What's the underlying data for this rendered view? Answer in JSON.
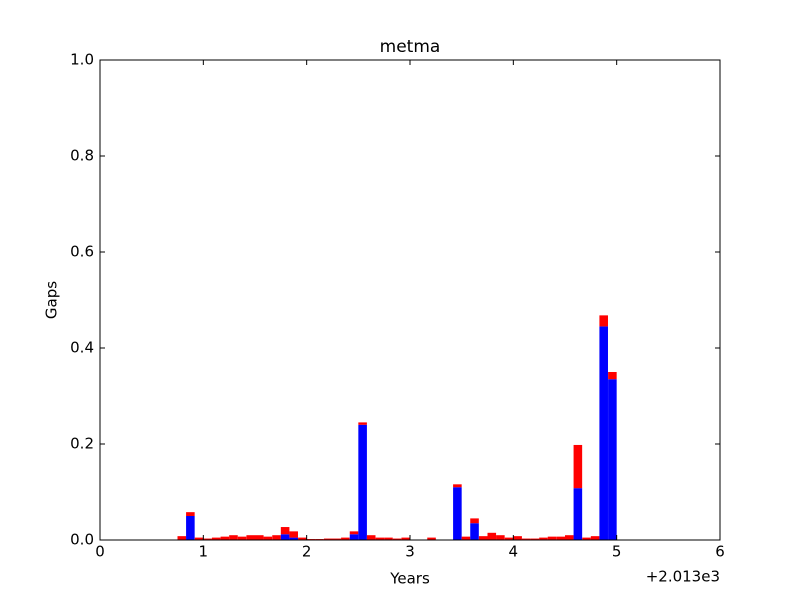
{
  "chart_data": {
    "type": "stacked_bar",
    "title": "metma",
    "xlabel": "Years",
    "ylabel": "Gaps",
    "x_offset_label": "+2.013e3",
    "x": [
      0.75,
      0.833,
      0.917,
      1.0,
      1.083,
      1.167,
      1.25,
      1.333,
      1.417,
      1.5,
      1.583,
      1.667,
      1.75,
      1.833,
      1.917,
      2.0,
      2.083,
      2.167,
      2.25,
      2.333,
      2.417,
      2.5,
      2.583,
      2.667,
      2.75,
      2.833,
      2.917,
      3.0,
      3.083,
      3.167,
      3.25,
      3.333,
      3.417,
      3.5,
      3.583,
      3.667,
      3.75,
      3.833,
      3.917,
      4.0,
      4.083,
      4.167,
      4.25,
      4.333,
      4.417,
      4.5,
      4.583,
      4.667,
      4.75,
      4.833,
      4.917
    ],
    "series": [
      {
        "color": "#0000ff",
        "values": [
          0,
          0.05,
          0,
          0,
          0,
          0,
          0,
          0,
          0,
          0,
          0,
          0,
          0.012,
          0.005,
          0,
          0,
          0,
          0,
          0,
          0,
          0.012,
          0.24,
          0,
          0,
          0,
          0,
          0,
          0,
          0,
          0,
          0,
          0,
          0.11,
          0,
          0.035,
          0,
          0,
          0,
          0,
          0,
          0,
          0,
          0,
          0,
          0,
          0,
          0.108,
          0,
          0,
          0.445,
          0.335
        ]
      },
      {
        "color": "#ff0000",
        "values": [
          0.008,
          0.008,
          0.005,
          0.003,
          0.005,
          0.007,
          0.01,
          0.007,
          0.01,
          0.01,
          0.007,
          0.01,
          0.015,
          0.013,
          0.005,
          0.002,
          0.002,
          0.003,
          0.003,
          0.005,
          0.006,
          0.005,
          0.01,
          0.005,
          0.005,
          0.003,
          0.005,
          0.001,
          0.001,
          0.005,
          0.001,
          0.001,
          0.006,
          0.007,
          0.01,
          0.008,
          0.015,
          0.01,
          0.005,
          0.008,
          0.003,
          0.003,
          0.005,
          0.007,
          0.007,
          0.01,
          0.09,
          0.005,
          0.008,
          0.023,
          0.015
        ]
      }
    ],
    "xlim": [
      0,
      6
    ],
    "xticks": [
      0,
      1,
      2,
      3,
      4,
      5,
      6
    ],
    "ylim": [
      0,
      1.0
    ],
    "yticks": [
      {
        "value": 0,
        "label": "0.0"
      },
      {
        "value": 0.2,
        "label": "0.2"
      },
      {
        "value": 0.4,
        "label": "0.4"
      },
      {
        "value": 0.6,
        "label": "0.6"
      },
      {
        "value": 0.8,
        "label": "0.8"
      },
      {
        "value": 1.0,
        "label": "1.0"
      }
    ]
  }
}
